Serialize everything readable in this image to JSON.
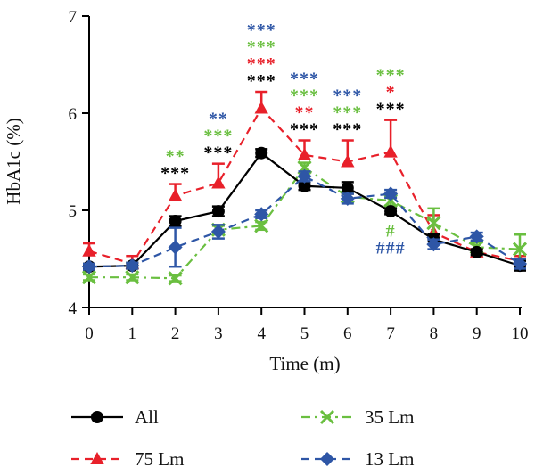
{
  "chart_data": {
    "type": "line",
    "xlabel": "Time (m)",
    "ylabel": "HbA1c (%)",
    "xlim": [
      0,
      10
    ],
    "ylim": [
      4,
      7
    ],
    "xticks": [
      "0",
      "1",
      "2",
      "3",
      "4",
      "5",
      "6",
      "7",
      "8",
      "9",
      "10"
    ],
    "yticks": [
      "4",
      "5",
      "6",
      "7"
    ],
    "x": [
      0,
      1,
      2,
      3,
      4,
      5,
      6,
      7,
      8,
      9,
      10
    ],
    "grid": false,
    "legend_position": "bottom",
    "series": [
      {
        "key": "all",
        "name": "All",
        "color": "#000000",
        "dash": "solid",
        "marker": "circle",
        "values": [
          4.42,
          4.43,
          4.89,
          4.99,
          5.59,
          5.25,
          5.23,
          4.99,
          4.7,
          4.57,
          4.43
        ],
        "error": [
          0.03,
          0.03,
          0.05,
          0.05,
          0.04,
          0.04,
          0.06,
          0.03,
          0.05,
          0.03,
          0.05
        ]
      },
      {
        "key": "lm75",
        "name": "75 Lm",
        "color": "#e8202a",
        "dash": "dash",
        "marker": "triangle",
        "values": [
          4.58,
          4.45,
          5.15,
          5.28,
          6.05,
          5.57,
          5.5,
          5.6,
          4.77,
          4.57,
          4.48
        ],
        "error": [
          0.08,
          0.08,
          0.12,
          0.2,
          0.17,
          0.15,
          0.22,
          0.33,
          0.18,
          0.03,
          0.05
        ]
      },
      {
        "key": "lm35",
        "name": "35 Lm",
        "color": "#6abf40",
        "dash": "dashdot",
        "marker": "x",
        "values": [
          4.31,
          4.31,
          4.3,
          4.8,
          4.84,
          5.44,
          5.14,
          5.1,
          4.87,
          4.62,
          4.6
        ],
        "error": [
          0.03,
          0.03,
          0.03,
          0.04,
          0.04,
          0.05,
          0.05,
          0.05,
          0.15,
          0.05,
          0.15
        ]
      },
      {
        "key": "lm13",
        "name": "13 Lm",
        "color": "#2e56a6",
        "dash": "dash",
        "marker": "diamond",
        "values": [
          4.42,
          4.43,
          4.62,
          4.78,
          4.96,
          5.35,
          5.12,
          5.17,
          4.65,
          4.73,
          4.45
        ],
        "error": [
          0.03,
          0.03,
          0.2,
          0.07,
          0.04,
          0.05,
          0.05,
          0.04,
          0.05,
          0.04,
          0.05
        ]
      }
    ],
    "annotations": [
      {
        "x": 2,
        "lines": [
          {
            "text": "**",
            "color": "#6abf40"
          },
          {
            "text": "***",
            "color": "#000000"
          }
        ]
      },
      {
        "x": 3,
        "lines": [
          {
            "text": "**",
            "color": "#2e56a6"
          },
          {
            "text": "***",
            "color": "#6abf40"
          },
          {
            "text": "***",
            "color": "#000000"
          }
        ]
      },
      {
        "x": 4,
        "lines": [
          {
            "text": "***",
            "color": "#2e56a6"
          },
          {
            "text": "***",
            "color": "#6abf40"
          },
          {
            "text": "***",
            "color": "#e8202a"
          },
          {
            "text": "***",
            "color": "#000000"
          }
        ]
      },
      {
        "x": 5,
        "lines": [
          {
            "text": "***",
            "color": "#2e56a6"
          },
          {
            "text": "***",
            "color": "#6abf40"
          },
          {
            "text": "**",
            "color": "#e8202a"
          },
          {
            "text": "***",
            "color": "#000000"
          }
        ]
      },
      {
        "x": 6,
        "lines": [
          {
            "text": "***",
            "color": "#2e56a6"
          },
          {
            "text": "***",
            "color": "#6abf40"
          },
          {
            "text": "***",
            "color": "#000000"
          }
        ]
      },
      {
        "x": 7,
        "lines": [
          {
            "text": "***",
            "color": "#6abf40"
          },
          {
            "text": "*",
            "color": "#e8202a"
          },
          {
            "text": "***",
            "color": "#000000"
          }
        ]
      },
      {
        "x": 7,
        "below": true,
        "lines": [
          {
            "text": "#",
            "color": "#6abf40"
          },
          {
            "text": "###",
            "color": "#2e56a6"
          }
        ]
      }
    ]
  }
}
